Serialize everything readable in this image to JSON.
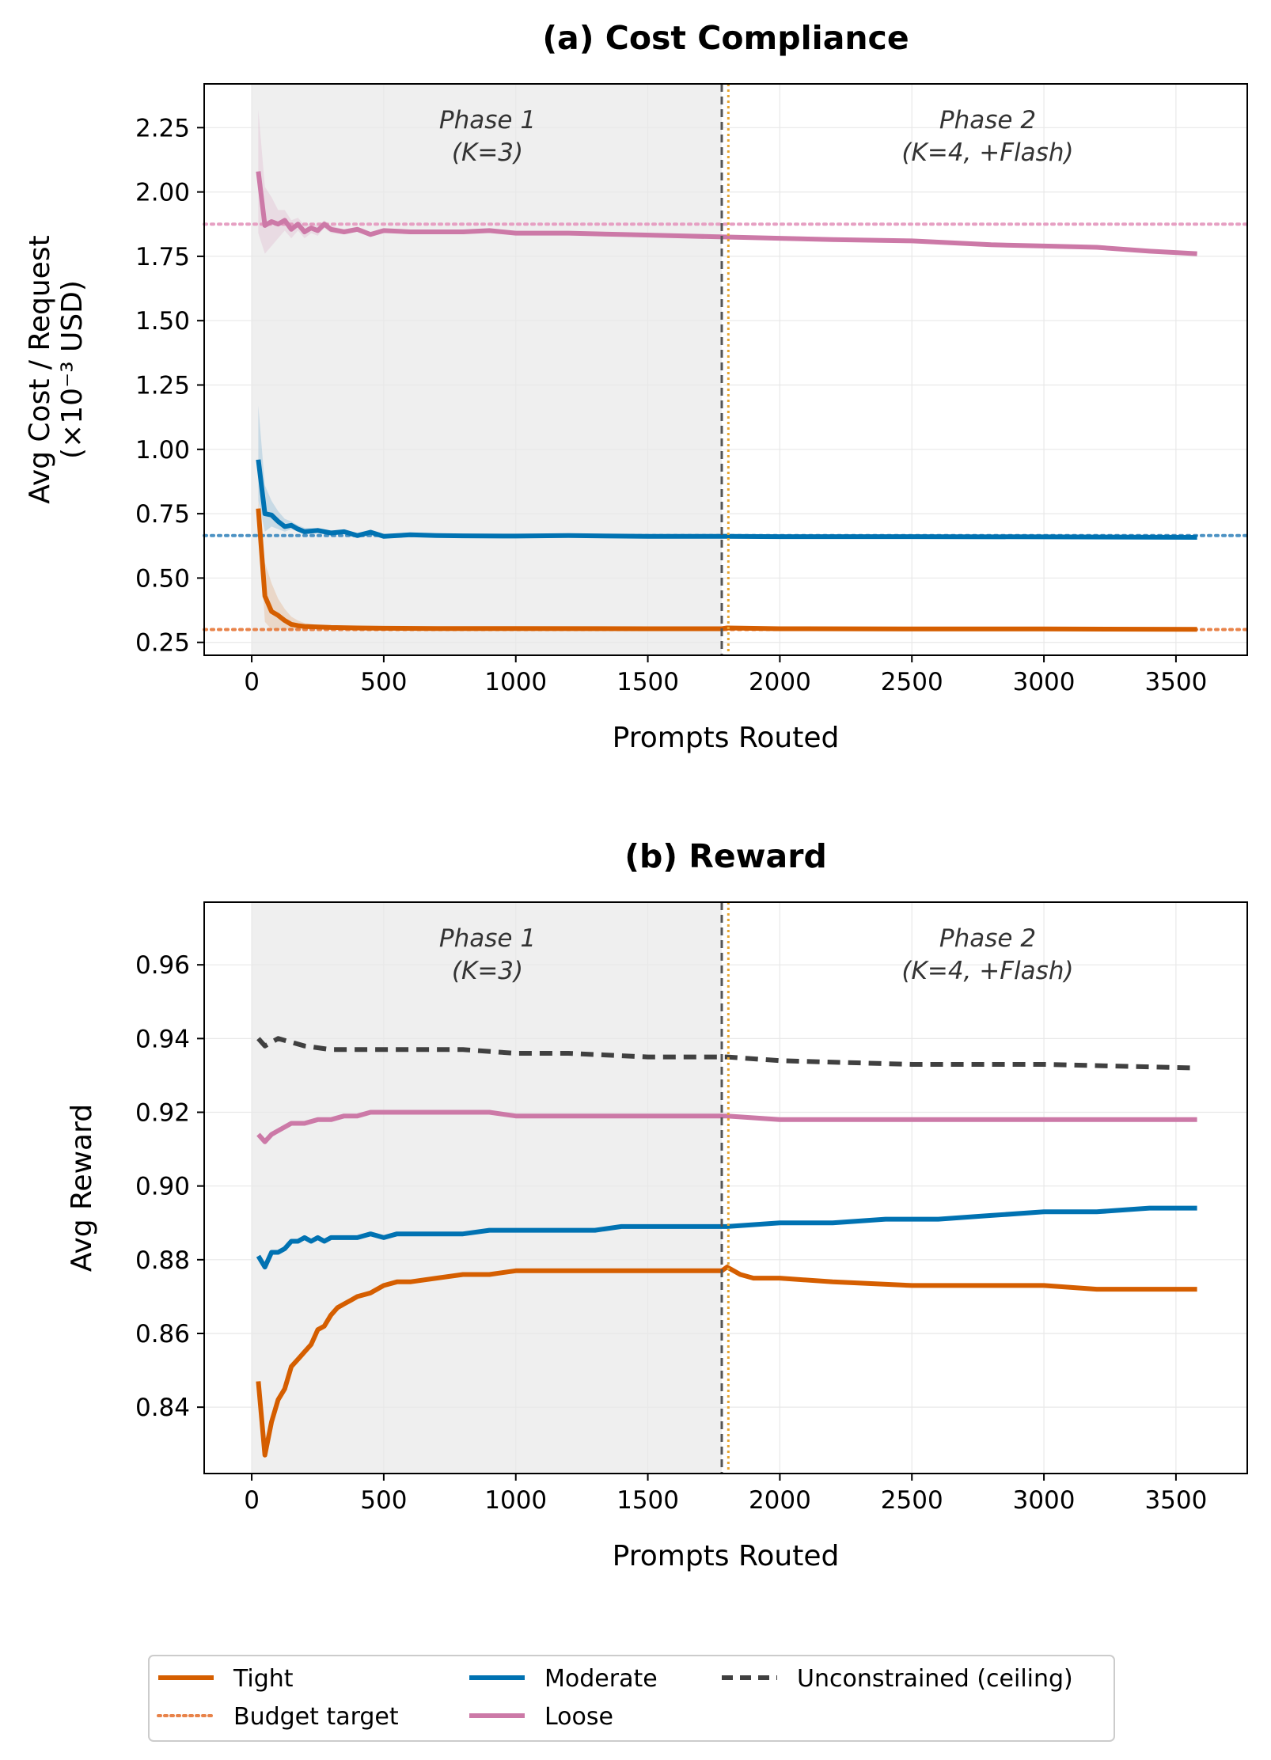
{
  "chart_data": [
    {
      "type": "line",
      "title": "(a) Cost Compliance",
      "xlabel": "Prompts Routed",
      "ylabel_line1": "Avg Cost / Request",
      "ylabel_line2": "(×10⁻³ USD)",
      "xlim": [
        -180,
        3770
      ],
      "ylim": [
        0.2,
        2.42
      ],
      "xticks": [
        0,
        500,
        1000,
        1500,
        2000,
        2500,
        3000,
        3500
      ],
      "yticks": [
        0.25,
        0.5,
        0.75,
        1.0,
        1.25,
        1.5,
        1.75,
        2.0,
        2.25
      ],
      "ytick_labels": [
        "0.25",
        "0.50",
        "0.75",
        "1.00",
        "1.25",
        "1.50",
        "1.75",
        "2.00",
        "2.25"
      ],
      "grid": true,
      "phase_shading": [
        0,
        1780
      ],
      "phase_boundary": 1780,
      "budget_marker_x": 1805,
      "phase1_label": [
        "Phase 1",
        "(K=3)"
      ],
      "phase2_label": [
        "Phase 2",
        "(K=4, +Flash)"
      ],
      "phase1_x": 890,
      "phase2_x": 2780,
      "budget_targets": [
        {
          "name": "Tight",
          "value": 0.3,
          "color": "#e8834a"
        },
        {
          "name": "Moderate",
          "value": 0.665,
          "color": "#4c92c3"
        },
        {
          "name": "Loose",
          "value": 1.875,
          "color": "#e69fc2"
        }
      ],
      "series": [
        {
          "name": "Tight",
          "color": "#d55e00",
          "x": [
            25,
            50,
            75,
            100,
            125,
            150,
            175,
            200,
            250,
            300,
            400,
            500,
            700,
            1000,
            1500,
            1780,
            1800,
            2000,
            2500,
            3000,
            3580
          ],
          "y": [
            0.77,
            0.43,
            0.37,
            0.355,
            0.335,
            0.32,
            0.315,
            0.312,
            0.31,
            0.308,
            0.306,
            0.305,
            0.304,
            0.304,
            0.303,
            0.303,
            0.306,
            0.303,
            0.302,
            0.302,
            0.301
          ],
          "band_upper": [
            0.8,
            0.56,
            0.48,
            0.42,
            0.38,
            0.35,
            0.335,
            0.325,
            0.318,
            0.313,
            0.309,
            0.307,
            0.305,
            0.305,
            0.304,
            0.304,
            0.307,
            0.304,
            0.303,
            0.303,
            0.302
          ],
          "band_lower": [
            0.74,
            0.33,
            0.3,
            0.3,
            0.3,
            0.3,
            0.3,
            0.3,
            0.302,
            0.303,
            0.303,
            0.303,
            0.303,
            0.303,
            0.302,
            0.302,
            0.305,
            0.302,
            0.301,
            0.301,
            0.3
          ]
        },
        {
          "name": "Moderate",
          "color": "#0072b2",
          "x": [
            25,
            50,
            75,
            100,
            125,
            150,
            175,
            200,
            250,
            300,
            350,
            400,
            450,
            500,
            600,
            700,
            800,
            1000,
            1200,
            1500,
            1800,
            2000,
            2500,
            3000,
            3580
          ],
          "y": [
            0.96,
            0.75,
            0.745,
            0.72,
            0.7,
            0.705,
            0.69,
            0.68,
            0.685,
            0.675,
            0.68,
            0.665,
            0.678,
            0.662,
            0.668,
            0.665,
            0.664,
            0.663,
            0.665,
            0.662,
            0.662,
            0.661,
            0.661,
            0.66,
            0.658
          ],
          "band_upper": [
            1.17,
            0.86,
            0.8,
            0.76,
            0.73,
            0.72,
            0.705,
            0.695,
            0.695,
            0.685,
            0.685,
            0.672,
            0.683,
            0.668,
            0.672,
            0.668,
            0.667,
            0.666,
            0.667,
            0.664,
            0.664,
            0.663,
            0.663,
            0.662,
            0.66
          ],
          "band_lower": [
            0.8,
            0.68,
            0.7,
            0.69,
            0.68,
            0.69,
            0.68,
            0.668,
            0.675,
            0.665,
            0.675,
            0.658,
            0.673,
            0.656,
            0.664,
            0.662,
            0.661,
            0.66,
            0.663,
            0.66,
            0.66,
            0.659,
            0.659,
            0.658,
            0.656
          ]
        },
        {
          "name": "Loose",
          "color": "#cc79a7",
          "x": [
            25,
            50,
            75,
            100,
            125,
            150,
            175,
            200,
            225,
            250,
            275,
            300,
            350,
            400,
            450,
            500,
            600,
            700,
            800,
            900,
            1000,
            1200,
            1400,
            1600,
            1800,
            2000,
            2200,
            2500,
            2800,
            3000,
            3200,
            3400,
            3580
          ],
          "y": [
            2.08,
            1.87,
            1.885,
            1.875,
            1.89,
            1.855,
            1.875,
            1.845,
            1.86,
            1.85,
            1.875,
            1.855,
            1.845,
            1.855,
            1.835,
            1.85,
            1.845,
            1.845,
            1.845,
            1.85,
            1.84,
            1.84,
            1.835,
            1.83,
            1.825,
            1.82,
            1.815,
            1.81,
            1.795,
            1.79,
            1.785,
            1.77,
            1.76
          ],
          "band_upper": [
            2.32,
            2.02,
            1.98,
            1.93,
            1.93,
            1.89,
            1.9,
            1.87,
            1.88,
            1.87,
            1.89,
            1.87,
            1.855,
            1.865,
            1.845,
            1.858,
            1.852,
            1.85,
            1.85,
            1.855,
            1.845,
            1.845,
            1.84,
            1.835,
            1.83,
            1.825,
            1.82,
            1.815,
            1.8,
            1.795,
            1.79,
            1.775,
            1.765
          ],
          "band_lower": [
            1.84,
            1.76,
            1.79,
            1.82,
            1.85,
            1.82,
            1.85,
            1.82,
            1.84,
            1.83,
            1.86,
            1.84,
            1.835,
            1.845,
            1.825,
            1.842,
            1.838,
            1.84,
            1.84,
            1.845,
            1.835,
            1.835,
            1.83,
            1.825,
            1.82,
            1.815,
            1.81,
            1.805,
            1.79,
            1.785,
            1.78,
            1.765,
            1.755
          ]
        }
      ]
    },
    {
      "type": "line",
      "title": "(b) Reward",
      "xlabel": "Prompts Routed",
      "ylabel": "Avg Reward",
      "xlim": [
        -180,
        3770
      ],
      "ylim": [
        0.822,
        0.977
      ],
      "xticks": [
        0,
        500,
        1000,
        1500,
        2000,
        2500,
        3000,
        3500
      ],
      "yticks": [
        0.84,
        0.86,
        0.88,
        0.9,
        0.92,
        0.94,
        0.96
      ],
      "ytick_labels": [
        "0.84",
        "0.86",
        "0.88",
        "0.90",
        "0.92",
        "0.94",
        "0.96"
      ],
      "grid": true,
      "phase_shading": [
        0,
        1780
      ],
      "phase_boundary": 1780,
      "budget_marker_x": 1805,
      "phase1_label": [
        "Phase 1",
        "(K=3)"
      ],
      "phase2_label": [
        "Phase 2",
        "(K=4, +Flash)"
      ],
      "phase1_x": 890,
      "phase2_x": 2780,
      "series": [
        {
          "name": "Tight",
          "color": "#d55e00",
          "x": [
            25,
            50,
            75,
            100,
            125,
            150,
            175,
            200,
            225,
            250,
            275,
            300,
            325,
            350,
            375,
            400,
            450,
            500,
            550,
            600,
            700,
            800,
            900,
            1000,
            1100,
            1200,
            1300,
            1400,
            1500,
            1600,
            1700,
            1780,
            1800,
            1850,
            1900,
            2000,
            2200,
            2500,
            2800,
            3000,
            3200,
            3580
          ],
          "y": [
            0.847,
            0.827,
            0.836,
            0.842,
            0.845,
            0.851,
            0.853,
            0.855,
            0.857,
            0.861,
            0.862,
            0.865,
            0.867,
            0.868,
            0.869,
            0.87,
            0.871,
            0.873,
            0.874,
            0.874,
            0.875,
            0.876,
            0.876,
            0.877,
            0.877,
            0.877,
            0.877,
            0.877,
            0.877,
            0.877,
            0.877,
            0.877,
            0.878,
            0.876,
            0.875,
            0.875,
            0.874,
            0.873,
            0.873,
            0.873,
            0.872,
            0.872
          ]
        },
        {
          "name": "Moderate",
          "color": "#0072b2",
          "x": [
            25,
            50,
            75,
            100,
            125,
            150,
            175,
            200,
            225,
            250,
            275,
            300,
            350,
            400,
            450,
            500,
            550,
            600,
            700,
            800,
            900,
            1000,
            1100,
            1200,
            1300,
            1400,
            1500,
            1600,
            1700,
            1800,
            2000,
            2200,
            2400,
            2600,
            2800,
            3000,
            3200,
            3400,
            3580
          ],
          "y": [
            0.881,
            0.878,
            0.882,
            0.882,
            0.883,
            0.885,
            0.885,
            0.886,
            0.885,
            0.886,
            0.885,
            0.886,
            0.886,
            0.886,
            0.887,
            0.886,
            0.887,
            0.887,
            0.887,
            0.887,
            0.888,
            0.888,
            0.888,
            0.888,
            0.888,
            0.889,
            0.889,
            0.889,
            0.889,
            0.889,
            0.89,
            0.89,
            0.891,
            0.891,
            0.892,
            0.893,
            0.893,
            0.894,
            0.894
          ]
        },
        {
          "name": "Loose",
          "color": "#cc79a7",
          "x": [
            25,
            50,
            75,
            100,
            125,
            150,
            175,
            200,
            250,
            300,
            350,
            400,
            450,
            500,
            600,
            700,
            800,
            900,
            1000,
            1200,
            1400,
            1600,
            1800,
            2000,
            2200,
            2500,
            2800,
            3000,
            3200,
            3580
          ],
          "y": [
            0.914,
            0.912,
            0.914,
            0.915,
            0.916,
            0.917,
            0.917,
            0.917,
            0.918,
            0.918,
            0.919,
            0.919,
            0.92,
            0.92,
            0.92,
            0.92,
            0.92,
            0.92,
            0.919,
            0.919,
            0.919,
            0.919,
            0.919,
            0.918,
            0.918,
            0.918,
            0.918,
            0.918,
            0.918,
            0.918
          ]
        },
        {
          "name": "Unconstrained (ceiling)",
          "color": "#404040",
          "dashed": true,
          "x": [
            25,
            50,
            75,
            100,
            150,
            200,
            300,
            400,
            500,
            700,
            800,
            1000,
            1200,
            1500,
            1800,
            2000,
            2500,
            3000,
            3580
          ],
          "y": [
            0.94,
            0.938,
            0.939,
            0.94,
            0.939,
            0.938,
            0.937,
            0.937,
            0.937,
            0.937,
            0.937,
            0.936,
            0.936,
            0.935,
            0.935,
            0.934,
            0.933,
            0.933,
            0.932
          ]
        }
      ]
    }
  ],
  "legend": {
    "placement": "bottom-center",
    "entries": [
      {
        "label": "Tight",
        "color": "#d55e00",
        "style": "solid"
      },
      {
        "label": "Budget target",
        "color": "#e8834a",
        "style": "dotted"
      },
      {
        "label": "Moderate",
        "color": "#0072b2",
        "style": "solid"
      },
      {
        "label": "Loose",
        "color": "#cc79a7",
        "style": "solid"
      },
      {
        "label": "Unconstrained (ceiling)",
        "color": "#404040",
        "style": "dashed"
      }
    ]
  },
  "colors": {
    "shading": "#efefef",
    "grid": "#e8e8e8",
    "phase_line": "#555555",
    "budget_marker": "#e6a532"
  }
}
